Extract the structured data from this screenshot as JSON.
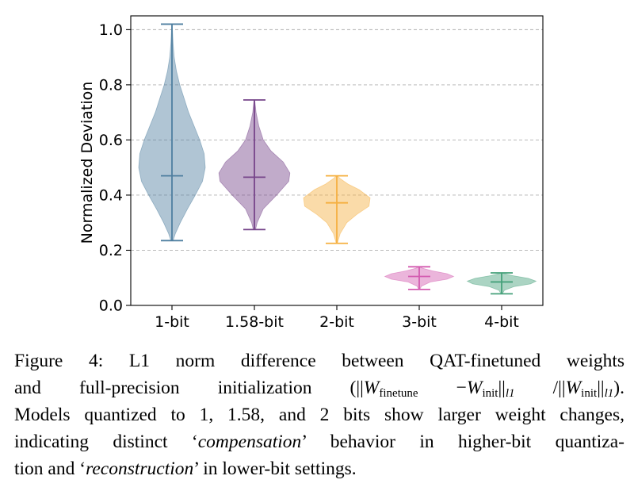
{
  "chart_data": {
    "type": "violin",
    "ylabel": "Normalized Deviation",
    "xlabel": "",
    "title": "",
    "ylim": [
      0.0,
      1.05
    ],
    "yticks": [
      "0.0",
      "0.2",
      "0.4",
      "0.6",
      "0.8",
      "1.0"
    ],
    "ytick_values": [
      0.0,
      0.2,
      0.4,
      0.6,
      0.8,
      1.0
    ],
    "grid": "horizontal-dashed",
    "categories": [
      "1-bit",
      "1.58-bit",
      "2-bit",
      "3-bit",
      "4-bit"
    ],
    "series": [
      {
        "category": "1-bit",
        "min": 0.235,
        "median": 0.47,
        "max": 1.02,
        "color": "#4f7fa0",
        "density": [
          [
            0.235,
            0.02
          ],
          [
            0.26,
            0.06
          ],
          [
            0.3,
            0.15
          ],
          [
            0.35,
            0.28
          ],
          [
            0.4,
            0.42
          ],
          [
            0.45,
            0.55
          ],
          [
            0.5,
            0.6
          ],
          [
            0.55,
            0.58
          ],
          [
            0.6,
            0.5
          ],
          [
            0.65,
            0.4
          ],
          [
            0.7,
            0.3
          ],
          [
            0.75,
            0.22
          ],
          [
            0.8,
            0.14
          ],
          [
            0.85,
            0.08
          ],
          [
            0.9,
            0.04
          ],
          [
            0.95,
            0.02
          ],
          [
            1.02,
            0.005
          ]
        ]
      },
      {
        "category": "1.58-bit",
        "min": 0.275,
        "median": 0.465,
        "max": 0.745,
        "color": "#76448a",
        "density": [
          [
            0.275,
            0.02
          ],
          [
            0.3,
            0.05
          ],
          [
            0.35,
            0.16
          ],
          [
            0.4,
            0.4
          ],
          [
            0.45,
            0.62
          ],
          [
            0.48,
            0.64
          ],
          [
            0.52,
            0.52
          ],
          [
            0.56,
            0.3
          ],
          [
            0.6,
            0.16
          ],
          [
            0.65,
            0.08
          ],
          [
            0.7,
            0.03
          ],
          [
            0.745,
            0.005
          ]
        ]
      },
      {
        "category": "2-bit",
        "min": 0.225,
        "median": 0.372,
        "max": 0.47,
        "color": "#f5b041",
        "density": [
          [
            0.225,
            0.01
          ],
          [
            0.26,
            0.06
          ],
          [
            0.3,
            0.18
          ],
          [
            0.33,
            0.36
          ],
          [
            0.36,
            0.58
          ],
          [
            0.39,
            0.6
          ],
          [
            0.42,
            0.4
          ],
          [
            0.44,
            0.2
          ],
          [
            0.46,
            0.06
          ],
          [
            0.47,
            0.01
          ]
        ]
      },
      {
        "category": "3-bit",
        "min": 0.058,
        "median": 0.105,
        "max": 0.14,
        "color": "#d35bb0",
        "density": [
          [
            0.058,
            0.01
          ],
          [
            0.07,
            0.04
          ],
          [
            0.085,
            0.2
          ],
          [
            0.095,
            0.5
          ],
          [
            0.105,
            0.62
          ],
          [
            0.115,
            0.5
          ],
          [
            0.125,
            0.24
          ],
          [
            0.135,
            0.06
          ],
          [
            0.14,
            0.01
          ]
        ]
      },
      {
        "category": "4-bit",
        "min": 0.042,
        "median": 0.085,
        "max": 0.118,
        "color": "#45a07a",
        "density": [
          [
            0.042,
            0.01
          ],
          [
            0.055,
            0.05
          ],
          [
            0.068,
            0.22
          ],
          [
            0.078,
            0.52
          ],
          [
            0.088,
            0.62
          ],
          [
            0.098,
            0.48
          ],
          [
            0.108,
            0.2
          ],
          [
            0.115,
            0.05
          ],
          [
            0.118,
            0.01
          ]
        ]
      }
    ]
  },
  "caption": {
    "figure_label": "Figure 4:",
    "line1": "L1 norm difference between QAT-finetuned weights",
    "line2_a": "and full-precision initialization (||",
    "w": "W",
    "sub_finetune": "finetune",
    "minus": " −",
    "sub_init": "init",
    "norm_close": "||",
    "sub_l1": "l1",
    "slash": " /||",
    "line2_end": ").",
    "line3": "Models quantized to 1, 1.58, and 2 bits show larger weight changes,",
    "line4_a": "indicating distinct ‘",
    "compensation": "compensation",
    "line4_b": "’ behavior in higher-bit quantiza-",
    "line5_a": "tion and ‘",
    "reconstruction": "reconstruction",
    "line5_b": "’ in lower-bit settings."
  }
}
